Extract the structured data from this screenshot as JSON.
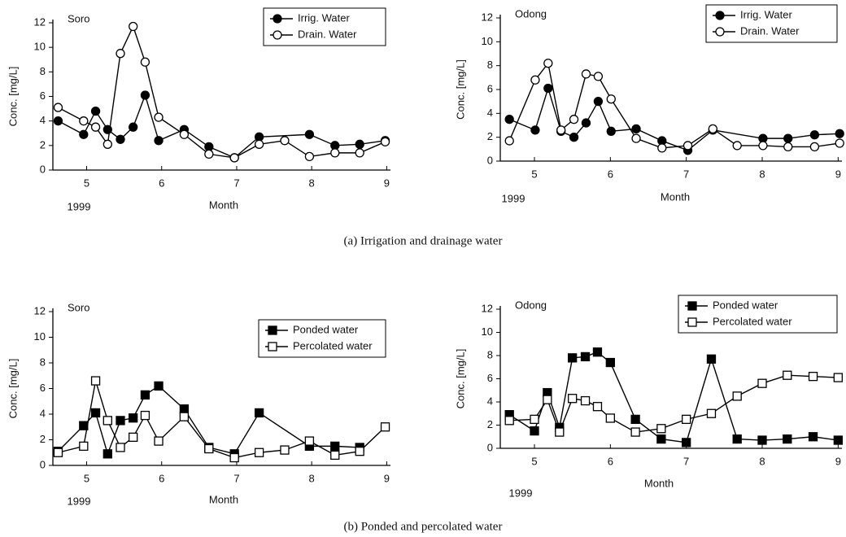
{
  "chart_data": [
    {
      "type": "line",
      "title": "Soro",
      "xlabel": "Month",
      "ylabel": "Conc. [mg/L]",
      "x_sublabel": "1999",
      "xlim": [
        4.55,
        9.05
      ],
      "xticks": [
        5,
        6,
        7,
        8,
        9
      ],
      "ylim": [
        0,
        12
      ],
      "yticks": [
        0,
        2,
        4,
        6,
        8,
        10,
        12
      ],
      "grid": false,
      "legend": "upper right",
      "series": [
        {
          "name": "Irrig. Water",
          "color": "#000000",
          "marker": "circle",
          "filled": true,
          "x": [
            4.62,
            4.96,
            5.12,
            5.28,
            5.45,
            5.62,
            5.78,
            5.96,
            6.3,
            6.63,
            6.97,
            7.3,
            7.97,
            8.31,
            8.64,
            8.98
          ],
          "values": [
            4.0,
            2.9,
            4.8,
            3.3,
            2.5,
            3.5,
            6.1,
            2.4,
            3.3,
            1.9,
            1.0,
            2.7,
            2.9,
            2.0,
            2.1,
            2.4
          ]
        },
        {
          "name": "Drain. Water",
          "color": "#000000",
          "marker": "circle",
          "filled": false,
          "x": [
            4.62,
            4.96,
            5.12,
            5.28,
            5.45,
            5.62,
            5.78,
            5.96,
            6.3,
            6.63,
            6.97,
            7.3,
            7.64,
            7.97,
            8.31,
            8.64,
            8.98
          ],
          "values": [
            5.1,
            4.0,
            3.5,
            2.1,
            9.5,
            11.7,
            8.8,
            4.3,
            2.9,
            1.3,
            1.0,
            2.1,
            2.4,
            1.1,
            1.4,
            1.4,
            2.3
          ]
        }
      ]
    },
    {
      "type": "line",
      "title": "Odong",
      "xlabel": "Month",
      "ylabel": "Conc. [mg/L]",
      "x_sublabel": "1999",
      "xlim": [
        4.55,
        9.05
      ],
      "xticks": [
        5,
        6,
        7,
        8,
        9
      ],
      "ylim": [
        0,
        12
      ],
      "yticks": [
        0,
        2,
        4,
        6,
        8,
        10,
        12
      ],
      "grid": false,
      "legend": "upper right",
      "series": [
        {
          "name": "Irrig. Water",
          "color": "#000000",
          "marker": "circle",
          "filled": true,
          "x": [
            4.67,
            5.01,
            5.18,
            5.35,
            5.52,
            5.68,
            5.84,
            6.01,
            6.34,
            6.68,
            7.02,
            7.35,
            8.01,
            8.34,
            8.69,
            9.02
          ],
          "values": [
            3.5,
            2.6,
            6.1,
            2.5,
            2.0,
            3.2,
            5.0,
            2.5,
            2.7,
            1.7,
            0.9,
            2.6,
            1.9,
            1.9,
            2.2,
            2.3
          ]
        },
        {
          "name": "Drain. Water",
          "color": "#000000",
          "marker": "circle",
          "filled": false,
          "x": [
            4.67,
            5.01,
            5.18,
            5.35,
            5.52,
            5.68,
            5.84,
            6.01,
            6.34,
            6.68,
            7.02,
            7.35,
            7.67,
            8.01,
            8.34,
            8.69,
            9.02
          ],
          "values": [
            1.7,
            6.8,
            8.2,
            2.6,
            3.5,
            7.3,
            7.1,
            5.2,
            1.9,
            1.1,
            1.3,
            2.7,
            1.3,
            1.3,
            1.2,
            1.2,
            1.5
          ]
        }
      ]
    },
    {
      "type": "line",
      "title": "Soro",
      "xlabel": "Month",
      "ylabel": "Conc. [mg/L]",
      "x_sublabel": "1999",
      "xlim": [
        4.55,
        9.05
      ],
      "xticks": [
        5,
        6,
        7,
        8,
        9
      ],
      "ylim": [
        0,
        12
      ],
      "yticks": [
        0,
        2,
        4,
        6,
        8,
        10,
        12
      ],
      "grid": false,
      "legend": "upper right",
      "series": [
        {
          "name": "Ponded water",
          "color": "#000000",
          "marker": "square",
          "filled": true,
          "x": [
            4.62,
            4.96,
            5.12,
            5.28,
            5.45,
            5.62,
            5.78,
            5.96,
            6.3,
            6.63,
            6.97,
            7.3,
            7.97,
            8.31,
            8.64
          ],
          "values": [
            1.1,
            3.1,
            4.1,
            0.9,
            3.5,
            3.7,
            5.5,
            6.2,
            4.4,
            1.4,
            0.9,
            4.1,
            1.5,
            1.5,
            1.4
          ]
        },
        {
          "name": "Percolated water",
          "color": "#000000",
          "marker": "square",
          "filled": false,
          "x": [
            4.62,
            4.96,
            5.12,
            5.28,
            5.45,
            5.62,
            5.78,
            5.96,
            6.3,
            6.63,
            6.97,
            7.3,
            7.64,
            7.97,
            8.31,
            8.64,
            8.98
          ],
          "values": [
            1.0,
            1.5,
            6.6,
            3.5,
            1.4,
            2.2,
            3.9,
            1.9,
            3.8,
            1.3,
            0.6,
            1.0,
            1.2,
            1.9,
            0.8,
            1.1,
            3.0
          ]
        }
      ]
    },
    {
      "type": "line",
      "title": "Odong",
      "xlabel": "Month",
      "ylabel": "Conc. [mg/L]",
      "x_sublabel": "1999",
      "xlim": [
        4.55,
        9.05
      ],
      "xticks": [
        5,
        6,
        7,
        8,
        9
      ],
      "ylim": [
        0,
        12
      ],
      "yticks": [
        0,
        2,
        4,
        6,
        8,
        10,
        12
      ],
      "grid": false,
      "legend": "upper right",
      "series": [
        {
          "name": "Ponded water",
          "color": "#000000",
          "marker": "square",
          "filled": true,
          "x": [
            4.67,
            5.0,
            5.17,
            5.33,
            5.5,
            5.67,
            5.83,
            6.0,
            6.33,
            6.67,
            7.0,
            7.33,
            7.67,
            8.0,
            8.33,
            8.67,
            9.0
          ],
          "values": [
            2.9,
            1.5,
            4.8,
            1.8,
            7.8,
            7.9,
            8.3,
            7.4,
            2.5,
            0.8,
            0.5,
            7.7,
            0.8,
            0.7,
            0.8,
            1.0,
            0.7
          ]
        },
        {
          "name": "Percolated water",
          "color": "#000000",
          "marker": "square",
          "filled": false,
          "x": [
            4.67,
            5.0,
            5.17,
            5.33,
            5.5,
            5.67,
            5.83,
            6.0,
            6.33,
            6.67,
            7.0,
            7.33,
            7.67,
            8.0,
            8.33,
            8.67,
            9.0
          ],
          "values": [
            2.4,
            2.5,
            4.2,
            1.4,
            4.3,
            4.1,
            3.6,
            2.6,
            1.4,
            1.7,
            2.5,
            3.0,
            4.5,
            5.6,
            6.3,
            6.2,
            6.1
          ]
        }
      ]
    }
  ],
  "captions": [
    "(a) Irrigation and drainage water",
    "(b) Ponded and percolated water"
  ]
}
